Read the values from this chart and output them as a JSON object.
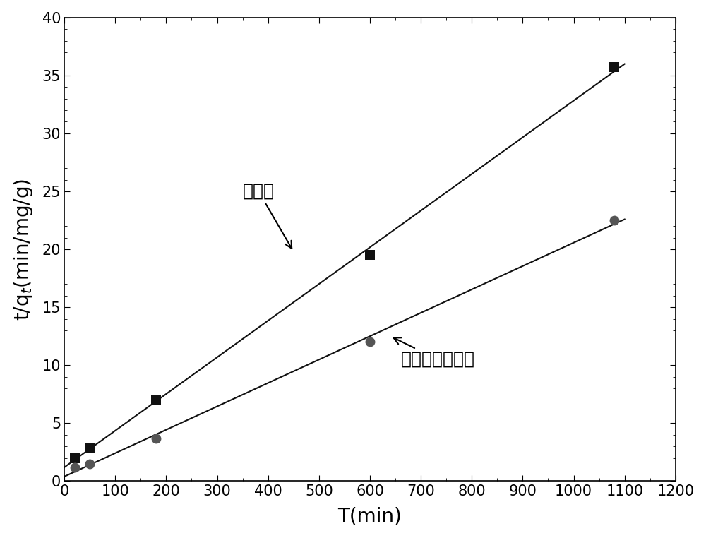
{
  "biochar_x": [
    20,
    50,
    180,
    600,
    1080
  ],
  "biochar_y": [
    2.0,
    2.8,
    7.0,
    19.5,
    35.7
  ],
  "sulfur_x": [
    20,
    50,
    180,
    600,
    1080
  ],
  "sulfur_y": [
    1.2,
    1.5,
    3.7,
    12.0,
    22.5
  ],
  "xlabel": "T(min)",
  "ylabel": "t/q_t(min/mg/g)",
  "xlim": [
    0,
    1200
  ],
  "ylim": [
    0,
    40
  ],
  "xticks": [
    0,
    100,
    200,
    300,
    400,
    500,
    600,
    700,
    800,
    900,
    1000,
    1100,
    1200
  ],
  "yticks": [
    0,
    5,
    10,
    15,
    20,
    25,
    30,
    35,
    40
  ],
  "biochar_label": "生物炭",
  "sulfur_label": "硫修饰的生物炭",
  "marker_color_biochar": "#111111",
  "marker_color_sulfur": "#555555",
  "line_color": "#111111",
  "fontsize_label": 20,
  "fontsize_tick": 15,
  "fontsize_annotation": 18,
  "figure_width": 10.0,
  "figure_height": 7.62,
  "dpi": 100
}
